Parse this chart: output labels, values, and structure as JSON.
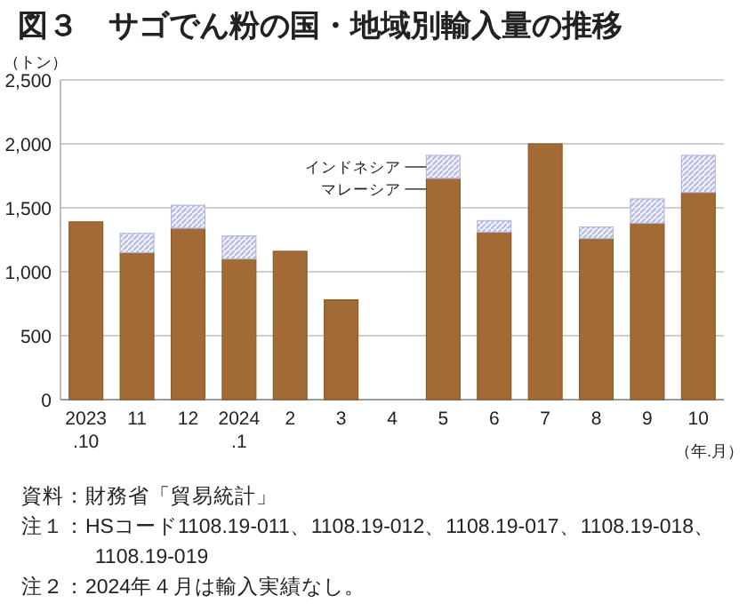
{
  "chart_data": {
    "type": "bar",
    "stacked": true,
    "title": "図３　サゴでん粉の国・地域別輸入量の推移",
    "categories": [
      "2023\n.10",
      "11",
      "12",
      "2024\n.1",
      "2",
      "3",
      "4",
      "5",
      "6",
      "7",
      "8",
      "9",
      "10"
    ],
    "series": [
      {
        "name": "マレーシア",
        "color": "#a26b35",
        "values": [
          1390,
          1150,
          1340,
          1100,
          1160,
          780,
          null,
          1730,
          1310,
          2000,
          1260,
          1380,
          1620
        ]
      },
      {
        "name": "インドネシア",
        "color": "#b4b8e0",
        "values": [
          0,
          150,
          180,
          180,
          0,
          0,
          null,
          180,
          90,
          0,
          90,
          190,
          290
        ]
      }
    ],
    "ylim": [
      0,
      2500
    ],
    "yticks": [
      {
        "value": 0,
        "label": "0"
      },
      {
        "value": 500,
        "label": "500"
      },
      {
        "value": 1000,
        "label": "1,000"
      },
      {
        "value": 1500,
        "label": "1,500"
      },
      {
        "value": 2000,
        "label": "2,000"
      },
      {
        "value": 2500,
        "label": "2,500"
      }
    ],
    "ylabel": "（トン）",
    "xlabel": "（年.月）",
    "grid": "y",
    "legend": false,
    "annotations": [
      "資料：財務省「貿易統計」",
      "注１：HSコード1108.19-011、1108.19-012、1108.19-017、1108.19-018、1108.19-019",
      "注２：2024年４月は輸入実績なし。"
    ]
  }
}
